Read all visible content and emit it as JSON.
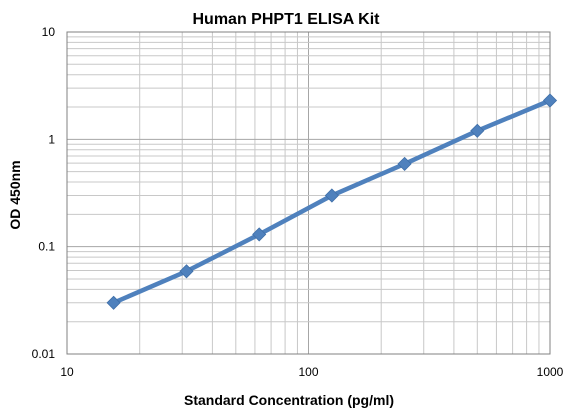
{
  "chart_data": {
    "type": "line",
    "title": "Human PHPT1 ELISA Kit",
    "xlabel": "Standard Concentration (pg/ml)",
    "ylabel": "OD 450nm",
    "x_scale": "log",
    "y_scale": "log",
    "xlim": [
      10,
      1000
    ],
    "ylim": [
      0.01,
      10
    ],
    "x_ticks": [
      "10",
      "100",
      "1000"
    ],
    "y_ticks": [
      "0.01",
      "0.1",
      "1",
      "10"
    ],
    "grid": true,
    "legend": "none",
    "series": [
      {
        "color": "#4F81BD",
        "marker": "diamond",
        "x": [
          15.6,
          31.25,
          62.5,
          125,
          250,
          500,
          1000
        ],
        "y": [
          0.03,
          0.059,
          0.13,
          0.3,
          0.59,
          1.2,
          2.3
        ]
      }
    ]
  }
}
